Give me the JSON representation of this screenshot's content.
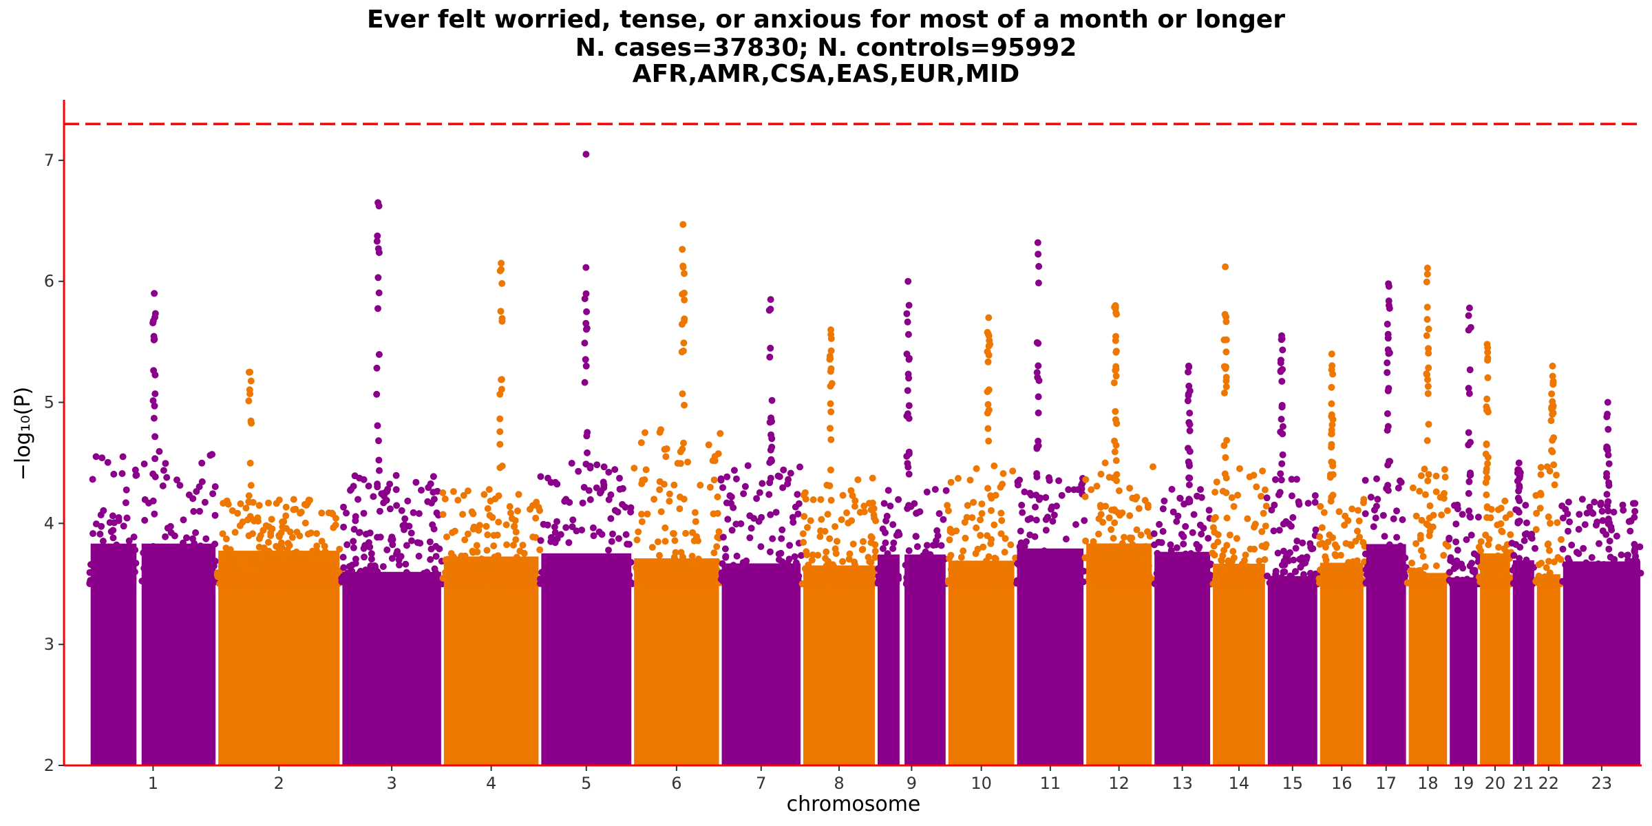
{
  "chart_data": {
    "type": "scatter",
    "subtype": "manhattan",
    "title_lines": [
      "Ever felt worried, tense, or anxious for most of a month or longer",
      "N. cases=37830; N. controls=95992",
      "AFR,AMR,CSA,EAS,EUR,MID"
    ],
    "xlabel": "chromosome",
    "ylabel": "−log₁₀(P)",
    "ylim": [
      2,
      7.5
    ],
    "yticks": [
      2,
      3,
      4,
      5,
      6,
      7
    ],
    "grid": false,
    "significance_threshold": 7.3,
    "colors": {
      "odd": "#8b008b",
      "even": "#ee7700",
      "threshold": "#ff0000",
      "axis": "#ff0000"
    },
    "chromosomes": [
      {
        "label": "1",
        "peak": 5.9,
        "base": 4.4
      },
      {
        "label": "2",
        "peak": 5.25,
        "base": 4.0
      },
      {
        "label": "3",
        "peak": 6.65,
        "base": 4.2
      },
      {
        "label": "4",
        "peak": 6.15,
        "base": 4.1
      },
      {
        "label": "5",
        "peak": 7.05,
        "base": 4.3
      },
      {
        "label": "6",
        "peak": 6.47,
        "base": 4.6
      },
      {
        "label": "7",
        "peak": 5.85,
        "base": 4.3
      },
      {
        "label": "8",
        "peak": 5.6,
        "base": 4.2
      },
      {
        "label": "9",
        "peak": 6.0,
        "base": 4.1
      },
      {
        "label": "10",
        "peak": 5.7,
        "base": 4.3
      },
      {
        "label": "11",
        "peak": 6.32,
        "base": 4.2
      },
      {
        "label": "12",
        "peak": 5.8,
        "base": 4.3
      },
      {
        "label": "13",
        "peak": 5.3,
        "base": 4.1
      },
      {
        "label": "14",
        "peak": 6.12,
        "base": 4.3
      },
      {
        "label": "15",
        "peak": 5.55,
        "base": 4.2
      },
      {
        "label": "16",
        "peak": 5.4,
        "base": 4.0
      },
      {
        "label": "17",
        "peak": 5.98,
        "base": 4.2
      },
      {
        "label": "18",
        "peak": 6.11,
        "base": 4.3
      },
      {
        "label": "19",
        "peak": 5.78,
        "base": 4.0
      },
      {
        "label": "20",
        "peak": 5.48,
        "base": 4.0
      },
      {
        "label": "21",
        "peak": 4.5,
        "base": 4.0
      },
      {
        "label": "22",
        "peak": 5.3,
        "base": 4.3
      },
      {
        "label": "23",
        "peak": 5.0,
        "base": 4.0
      }
    ]
  }
}
